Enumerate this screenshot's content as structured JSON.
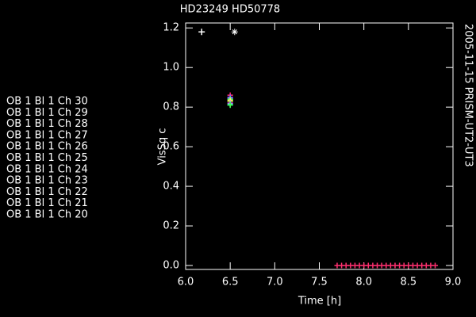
{
  "chart_data": {
    "type": "scatter",
    "title": "HD23249  HD50778",
    "side_text": "2005-11-15 PRISM-UT2-UT3",
    "x_label": "Time [h]",
    "y_label": "VisSq c",
    "xlim": [
      6.0,
      9.0
    ],
    "ylim": [
      -0.02,
      1.225
    ],
    "xticks": [
      {
        "value": 6.0,
        "label": "6.0"
      },
      {
        "value": 6.5,
        "label": "6.5"
      },
      {
        "value": 7.0,
        "label": "7.0"
      },
      {
        "value": 7.5,
        "label": "7.5"
      },
      {
        "value": 8.0,
        "label": "8.0"
      },
      {
        "value": 8.5,
        "label": "8.5"
      },
      {
        "value": 9.0,
        "label": "9.0"
      }
    ],
    "yticks": [
      {
        "value": 0.0,
        "label": "0.0"
      },
      {
        "value": 0.2,
        "label": "0.2"
      },
      {
        "value": 0.4,
        "label": "0.4"
      },
      {
        "value": 0.6,
        "label": "0.6"
      },
      {
        "value": 0.8,
        "label": "0.8"
      },
      {
        "value": 1.0,
        "label": "1.0"
      },
      {
        "value": 1.2,
        "label": "1.2"
      }
    ],
    "series": [
      {
        "name": "OB 1 Bl 1 Ch 30",
        "color": "#ff3070",
        "x": [
          6.5,
          7.7,
          7.75,
          7.8,
          7.85,
          7.9,
          7.95,
          8.0,
          8.05,
          8.1,
          8.15,
          8.2,
          8.25,
          8.3,
          8.35,
          8.4,
          8.45,
          8.5,
          8.55,
          8.6,
          8.65,
          8.7,
          8.75,
          8.8
        ],
        "values": [
          0.86,
          0,
          0,
          0,
          0,
          0,
          0,
          0,
          0,
          0,
          0,
          0,
          0,
          0,
          0,
          0,
          0,
          0,
          0,
          0,
          0,
          0,
          0,
          0
        ]
      },
      {
        "name": "OB 1 Bl 1 Ch 29",
        "color": "#b040ff",
        "x": [
          6.5
        ],
        "values": [
          0.85
        ]
      },
      {
        "name": "OB 1 Bl 1 Ch 28",
        "color": "#4080ff",
        "x": [
          6.5
        ],
        "values": [
          0.845
        ]
      },
      {
        "name": "OB 1 Bl 1 Ch 27",
        "color": "#60ff60",
        "x": [
          6.5
        ],
        "values": [
          0.84
        ]
      },
      {
        "name": "OB 1 Bl 1 Ch 26",
        "color": "#c0ff60",
        "x": [
          6.5
        ],
        "values": [
          0.835
        ]
      },
      {
        "name": "OB 1 Bl 1 Ch 25",
        "color": "#ff8040",
        "x": [
          6.5
        ],
        "values": [
          0.83
        ]
      },
      {
        "name": "OB 1 Bl 1 Ch 24",
        "color": "#ffff60",
        "x": [
          6.5
        ],
        "values": [
          0.83
        ]
      },
      {
        "name": "OB 1 Bl 1 Ch 23",
        "color": "#ff40ff",
        "x": [
          6.5
        ],
        "values": [
          0.82
        ]
      },
      {
        "name": "OB 1 Bl 1 Ch 22",
        "color": "#40ffd0",
        "x": [
          6.5
        ],
        "values": [
          0.815
        ]
      },
      {
        "name": "OB 1 Bl 1 Ch 21",
        "color": "#4060ff",
        "x": [
          6.5
        ],
        "values": [
          0.81
        ]
      },
      {
        "name": "OB 1 Bl 1 Ch 20",
        "color": "#40ff40",
        "x": [
          6.5
        ],
        "values": [
          0.81
        ]
      }
    ],
    "markers": [
      {
        "symbol": "plus",
        "x": 6.18,
        "y": 1.18,
        "color": "#ffffff"
      },
      {
        "symbol": "asterisk",
        "x": 6.55,
        "y": 1.18,
        "color": "#ffffff"
      }
    ]
  }
}
